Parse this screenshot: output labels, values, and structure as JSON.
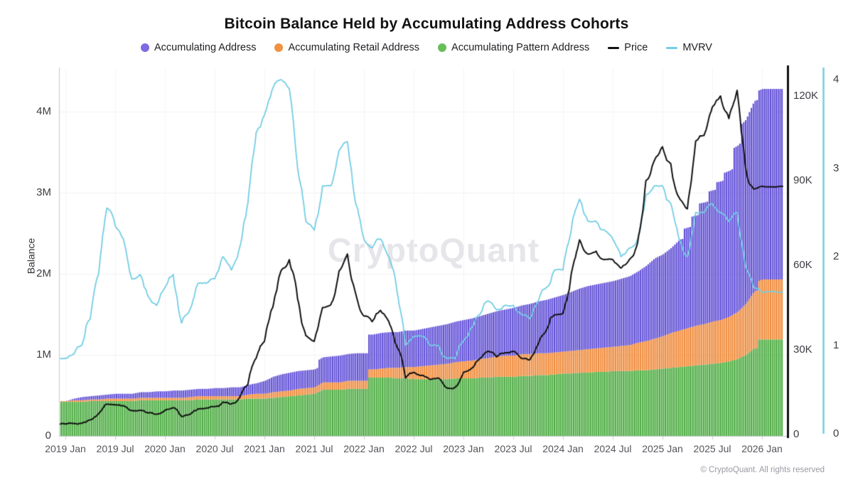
{
  "title": "Bitcoin Balance Held by Accumulating Address Cohorts",
  "watermark": "CryptoQuant",
  "footer": "© CryptoQuant. All rights reserved",
  "legend": {
    "items": [
      {
        "label": "Accumulating Address",
        "type": "dot",
        "color": "#7d6be2"
      },
      {
        "label": "Accumulating Retail Address",
        "type": "dot",
        "color": "#f0923f"
      },
      {
        "label": "Accumulating Pattern Address",
        "type": "dot",
        "color": "#67be59"
      },
      {
        "label": "Price",
        "type": "line",
        "color": "#121212"
      },
      {
        "label": "MVRV",
        "type": "line",
        "color": "#73cde4"
      }
    ]
  },
  "axes": {
    "balance": {
      "label": "Balance",
      "side": "left",
      "ticks": [
        {
          "label": "0",
          "value": 0
        },
        {
          "label": "1M",
          "value": 1
        },
        {
          "label": "2M",
          "value": 2
        },
        {
          "label": "3M",
          "value": 3
        },
        {
          "label": "4M",
          "value": 4
        }
      ]
    },
    "price": {
      "side": "right-inner",
      "ticks": [
        {
          "label": "0",
          "value": 0
        },
        {
          "label": "30K",
          "value": 30
        },
        {
          "label": "60K",
          "value": 60
        },
        {
          "label": "90K",
          "value": 90
        },
        {
          "label": "120K",
          "value": 120
        }
      ]
    },
    "mvrv": {
      "side": "right-outer",
      "ticks": [
        {
          "label": "0",
          "value": 0
        },
        {
          "label": "1",
          "value": 1
        },
        {
          "label": "2",
          "value": 2
        },
        {
          "label": "3",
          "value": 3
        },
        {
          "label": "4",
          "value": 4
        }
      ]
    },
    "x": {
      "ticks": [
        {
          "label": "2019 Jan",
          "year": 2019.0
        },
        {
          "label": "2019 Jul",
          "year": 2019.5
        },
        {
          "label": "2020 Jan",
          "year": 2020.0
        },
        {
          "label": "2020 Jul",
          "year": 2020.5
        },
        {
          "label": "2021 Jan",
          "year": 2021.0
        },
        {
          "label": "2021 Jul",
          "year": 2021.5
        },
        {
          "label": "2022 Jan",
          "year": 2022.0
        },
        {
          "label": "2022 Jul",
          "year": 2022.5
        },
        {
          "label": "2023 Jan",
          "year": 2023.0
        },
        {
          "label": "2023 Jul",
          "year": 2023.5
        },
        {
          "label": "2024 Jan",
          "year": 2024.0
        },
        {
          "label": "2024 Jul",
          "year": 2024.5
        },
        {
          "label": "2025 Jan",
          "year": 2025.0
        },
        {
          "label": "2025 Jul",
          "year": 2025.5
        },
        {
          "label": "2026 Jan",
          "year": 2026.0
        }
      ]
    }
  },
  "colors": {
    "accumulating": "#5b4ad4",
    "retail": "#ee8633",
    "pattern": "#46a93b",
    "price": "#121212",
    "mvrv": "#73cde4",
    "grid": "#f1f1f4",
    "grid_vertical": "#f4f4f7",
    "axis_line": "#c9c9ce",
    "price_axis_line": "#111111",
    "mvrv_axis_line": "#73cde4"
  },
  "chart_data": {
    "type": "mixed",
    "subtype": "stacked-bars-plus-lines",
    "title": "Bitcoin Balance Held by Accumulating Address Cohorts",
    "ylabel_left": "Balance",
    "legend_position": "top-center",
    "grid": "horizontal",
    "time": {
      "start_year": 2019,
      "start_month": 1,
      "interval_months": 1,
      "points": 85,
      "end_year": 2026,
      "end_month": 1
    },
    "axis_ranges": {
      "balance_M": [
        0,
        4.55
      ],
      "price_K": [
        0,
        126
      ],
      "mvrv": [
        0,
        4.35
      ]
    },
    "stacked_series": [
      {
        "name": "Accumulating Pattern Address",
        "axis": "balance",
        "unit": "M BTC",
        "stack_order": 0,
        "values": [
          0.42,
          0.42,
          0.42,
          0.43,
          0.43,
          0.43,
          0.43,
          0.43,
          0.43,
          0.44,
          0.44,
          0.44,
          0.44,
          0.44,
          0.44,
          0.44,
          0.45,
          0.45,
          0.45,
          0.45,
          0.45,
          0.45,
          0.46,
          0.46,
          0.46,
          0.47,
          0.48,
          0.49,
          0.5,
          0.51,
          0.52,
          0.57,
          0.57,
          0.57,
          0.58,
          0.58,
          0.58,
          0.72,
          0.72,
          0.72,
          0.71,
          0.71,
          0.7,
          0.7,
          0.7,
          0.7,
          0.7,
          0.71,
          0.71,
          0.71,
          0.72,
          0.72,
          0.73,
          0.73,
          0.73,
          0.74,
          0.74,
          0.75,
          0.75,
          0.76,
          0.77,
          0.77,
          0.78,
          0.78,
          0.79,
          0.79,
          0.8,
          0.8,
          0.8,
          0.81,
          0.81,
          0.82,
          0.83,
          0.84,
          0.85,
          0.86,
          0.87,
          0.88,
          0.89,
          0.9,
          0.92,
          0.95,
          1.0,
          1.08,
          1.19
        ]
      },
      {
        "name": "Accumulating Retail Address",
        "axis": "balance",
        "unit": "M BTC",
        "stack_order": 1,
        "values": [
          0.01,
          0.02,
          0.02,
          0.02,
          0.02,
          0.03,
          0.03,
          0.03,
          0.03,
          0.03,
          0.03,
          0.03,
          0.03,
          0.03,
          0.03,
          0.04,
          0.04,
          0.04,
          0.04,
          0.04,
          0.04,
          0.04,
          0.05,
          0.06,
          0.06,
          0.07,
          0.07,
          0.07,
          0.08,
          0.08,
          0.08,
          0.09,
          0.09,
          0.09,
          0.1,
          0.1,
          0.1,
          0.1,
          0.11,
          0.12,
          0.13,
          0.14,
          0.15,
          0.16,
          0.17,
          0.18,
          0.19,
          0.2,
          0.21,
          0.22,
          0.23,
          0.24,
          0.25,
          0.26,
          0.26,
          0.27,
          0.27,
          0.27,
          0.27,
          0.27,
          0.27,
          0.28,
          0.28,
          0.29,
          0.29,
          0.3,
          0.3,
          0.31,
          0.32,
          0.34,
          0.36,
          0.38,
          0.4,
          0.43,
          0.45,
          0.47,
          0.49,
          0.5,
          0.52,
          0.53,
          0.55,
          0.58,
          0.63,
          0.7,
          0.74
        ]
      },
      {
        "name": "Accumulating Address",
        "axis": "balance",
        "unit": "M BTC",
        "stack_order": 2,
        "values": [
          0.0,
          0.02,
          0.04,
          0.04,
          0.05,
          0.05,
          0.06,
          0.06,
          0.06,
          0.07,
          0.07,
          0.08,
          0.08,
          0.09,
          0.09,
          0.09,
          0.09,
          0.09,
          0.1,
          0.1,
          0.11,
          0.11,
          0.12,
          0.13,
          0.16,
          0.19,
          0.21,
          0.22,
          0.22,
          0.22,
          0.22,
          0.31,
          0.32,
          0.33,
          0.33,
          0.34,
          0.34,
          0.43,
          0.44,
          0.44,
          0.44,
          0.45,
          0.45,
          0.46,
          0.47,
          0.48,
          0.49,
          0.5,
          0.51,
          0.52,
          0.53,
          0.55,
          0.56,
          0.57,
          0.59,
          0.6,
          0.62,
          0.64,
          0.66,
          0.68,
          0.7,
          0.73,
          0.76,
          0.78,
          0.79,
          0.8,
          0.81,
          0.83,
          0.85,
          0.88,
          0.93,
          0.99,
          1.01,
          1.05,
          1.12,
          1.24,
          1.36,
          1.5,
          1.62,
          1.71,
          1.8,
          2.05,
          2.27,
          2.35,
          2.35
        ]
      }
    ],
    "line_series": [
      {
        "name": "Price",
        "axis": "price",
        "unit": "K USD",
        "values": [
          3.7,
          3.9,
          4.0,
          5.2,
          7.3,
          10.8,
          10.5,
          10.2,
          8.5,
          8.6,
          7.6,
          7.2,
          8.5,
          9.5,
          6.4,
          7.1,
          9.1,
          9.4,
          9.9,
          11.5,
          10.8,
          13.0,
          17.7,
          27.0,
          33,
          45,
          58,
          62,
          48,
          35,
          33,
          45,
          46,
          58,
          64,
          50,
          42,
          40,
          44,
          40,
          31,
          20,
          22,
          21,
          19.5,
          20,
          16.5,
          16.7,
          22,
          23.5,
          27,
          29.5,
          27.5,
          29,
          29.5,
          27,
          26.5,
          32,
          37,
          42.5,
          43,
          57,
          69,
          64,
          65,
          62,
          62,
          59,
          62,
          68,
          90,
          97,
          102,
          96,
          84,
          80,
          104,
          106,
          116,
          120,
          112,
          122,
          95,
          87,
          88
        ]
      },
      {
        "name": "MVRV",
        "axis": "mvrv",
        "unit": "ratio",
        "values": [
          0.85,
          0.9,
          1.0,
          1.3,
          1.8,
          2.55,
          2.35,
          2.2,
          1.75,
          1.8,
          1.55,
          1.45,
          1.65,
          1.8,
          1.25,
          1.4,
          1.7,
          1.7,
          1.75,
          2.0,
          1.85,
          2.1,
          2.6,
          3.4,
          3.6,
          3.9,
          4.0,
          3.9,
          3.0,
          2.4,
          2.3,
          2.8,
          2.8,
          3.2,
          3.3,
          2.6,
          2.2,
          2.1,
          2.2,
          2.0,
          1.6,
          1.0,
          1.1,
          1.1,
          1.0,
          1.0,
          0.85,
          0.85,
          1.05,
          1.2,
          1.35,
          1.5,
          1.4,
          1.45,
          1.45,
          1.35,
          1.3,
          1.5,
          1.65,
          1.85,
          1.85,
          2.3,
          2.65,
          2.4,
          2.4,
          2.3,
          2.2,
          2.0,
          2.1,
          2.2,
          2.7,
          2.8,
          2.8,
          2.6,
          2.2,
          2.0,
          2.5,
          2.5,
          2.6,
          2.5,
          2.4,
          2.5,
          1.9,
          1.65,
          1.6
        ]
      }
    ]
  }
}
